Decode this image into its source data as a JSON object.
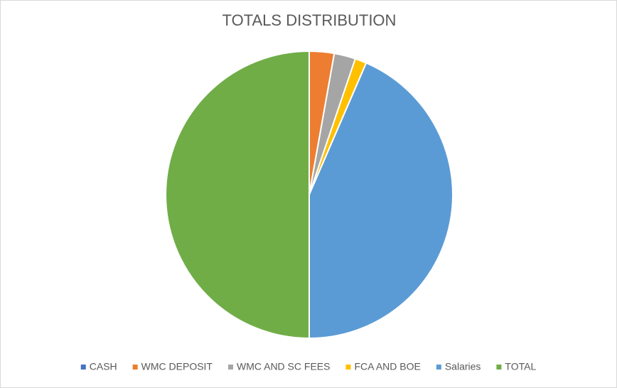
{
  "chart_data": {
    "type": "pie",
    "title": "TOTALS DISTRIBUTION",
    "categories": [
      "CASH",
      "WMC DEPOSIT",
      "WMC AND SC FEES",
      "FCA AND BOE",
      "Salaries",
      "TOTAL"
    ],
    "values": [
      0,
      2.8,
      2.4,
      1.3,
      43.5,
      50
    ],
    "colors": [
      "#4472c4",
      "#ed7d31",
      "#a5a5a5",
      "#ffc000",
      "#5b9bd5",
      "#70ad47"
    ],
    "legend": "bottom"
  }
}
